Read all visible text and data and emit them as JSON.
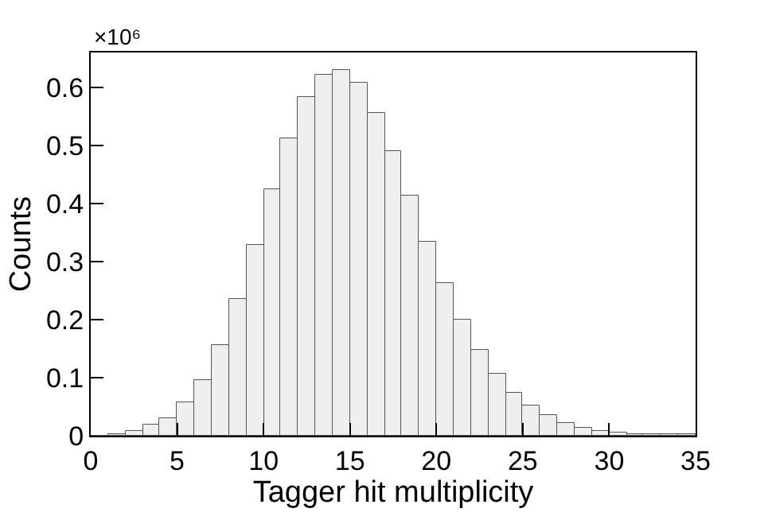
{
  "chart_data": {
    "type": "histogram",
    "xlabel": "Tagger hit multiplicity",
    "ylabel": "Counts",
    "annotations": [
      "×10⁶"
    ],
    "bins": [
      0,
      1,
      2,
      3,
      4,
      5,
      6,
      7,
      8,
      9,
      10,
      11,
      12,
      13,
      14,
      15,
      16,
      17,
      18,
      19,
      20,
      21,
      22,
      23,
      24,
      25,
      26,
      27,
      28,
      29,
      30,
      31,
      32,
      33,
      34,
      35
    ],
    "values": [
      0.001,
      0.003,
      0.007,
      0.018,
      0.03,
      0.057,
      0.096,
      0.157,
      0.235,
      0.328,
      0.424,
      0.513,
      0.583,
      0.623,
      0.63,
      0.608,
      0.556,
      0.489,
      0.413,
      0.335,
      0.263,
      0.201,
      0.149,
      0.106,
      0.074,
      0.051,
      0.035,
      0.023,
      0.015,
      0.009,
      0.006,
      0.003,
      0.002,
      0.002,
      0.002
    ],
    "color": "#efefef",
    "xlim": [
      0,
      35
    ],
    "xticks": [
      0,
      5,
      10,
      15,
      20,
      25,
      30,
      35
    ],
    "ylim": [
      0,
      0.66
    ],
    "yticks": [
      0,
      0.1,
      0.2,
      0.3,
      0.4,
      0.5,
      0.6
    ]
  }
}
